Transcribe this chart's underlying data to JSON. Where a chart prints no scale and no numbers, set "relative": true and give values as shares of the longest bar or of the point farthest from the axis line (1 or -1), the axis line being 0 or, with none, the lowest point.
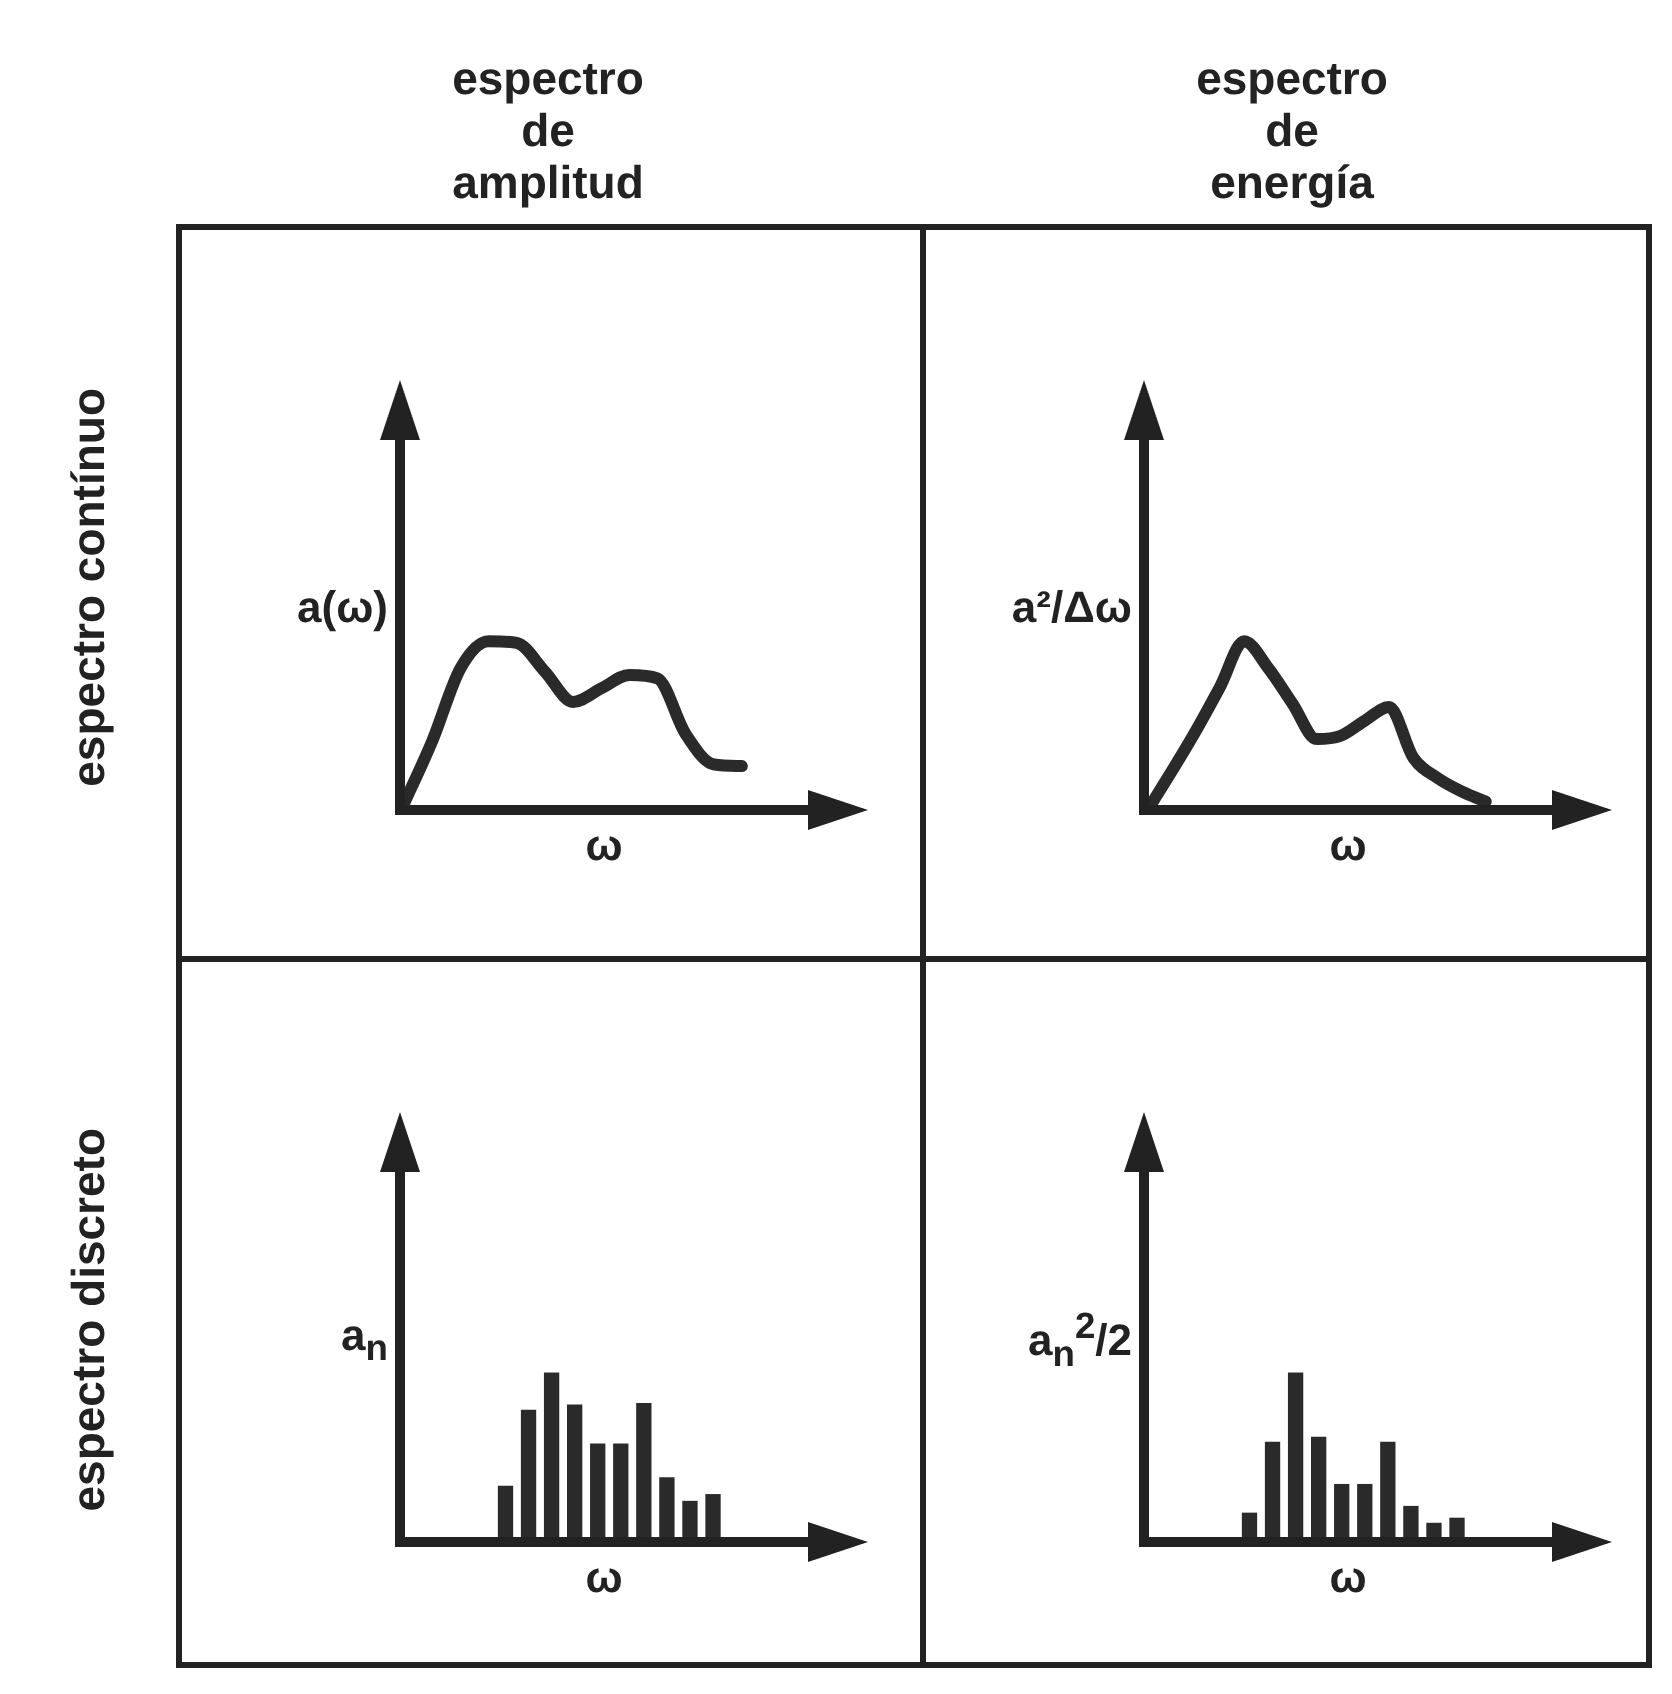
{
  "chart_data": [
    {
      "type": "line",
      "title": "espectro de amplitud",
      "annotations": [
        "espectro contínuo"
      ],
      "ylabel": "a(ω)",
      "xlabel": "ω",
      "relative": true,
      "color": "#2a2a2a",
      "categories": [
        null,
        null,
        null,
        null,
        null,
        null,
        null,
        null,
        null,
        null,
        null,
        null,
        null
      ],
      "values": [
        0.04,
        0.41,
        0.84,
        1,
        0.99,
        0.82,
        0.64,
        0.72,
        0.8,
        0.78,
        0.45,
        0.27,
        0.26
      ]
    },
    {
      "type": "line",
      "title": "espectro de energía",
      "ylabel": "a²/Δω",
      "xlabel": "ω",
      "relative": true,
      "color": "#2a2a2a",
      "categories": [
        null,
        null,
        null,
        null,
        null,
        null,
        null,
        null,
        null,
        null,
        null,
        null,
        null,
        null,
        null
      ],
      "values": [
        0,
        0.23,
        0.47,
        0.73,
        1,
        0.84,
        0.63,
        0.42,
        0.44,
        0.53,
        0.61,
        0.31,
        0.19,
        0.11,
        0.05
      ]
    },
    {
      "type": "bar",
      "annotations": [
        "espectro discreto"
      ],
      "ylabel": "a$_{n}$",
      "xlabel": "ω",
      "relative": true,
      "color": "#2a2a2a",
      "categories": [
        null,
        null,
        null,
        null,
        null,
        null,
        null,
        null,
        null,
        null
      ],
      "values": [
        0.33,
        0.78,
        1,
        0.81,
        0.58,
        0.58,
        0.82,
        0.38,
        0.24,
        0.28
      ]
    },
    {
      "type": "bar",
      "ylabel": "a$_{n}$$^{2}$/2",
      "xlabel": "ω",
      "relative": true,
      "color": "#2a2a2a",
      "categories": [
        null,
        null,
        null,
        null,
        null,
        null,
        null,
        null,
        null,
        null
      ],
      "values": [
        0.17,
        0.59,
        1,
        0.62,
        0.34,
        0.34,
        0.59,
        0.21,
        0.11,
        0.14
      ]
    }
  ]
}
